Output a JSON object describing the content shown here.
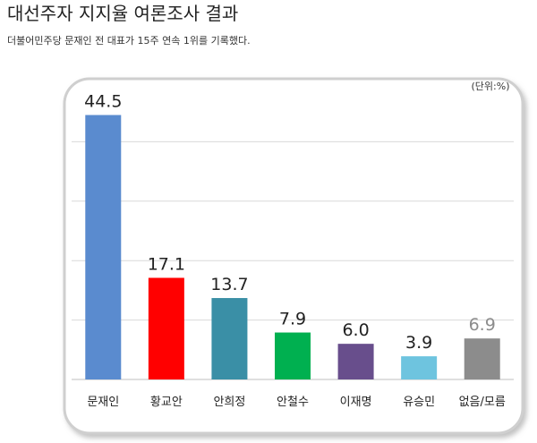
{
  "chart_data": {
    "type": "bar",
    "title": "대선주자 지지율 여론조사 결과",
    "subtitle": "더불어민주당 문재인 전 대표가 15주 연속 1위를 기록했다.",
    "unit_label": "(단위:%)",
    "categories": [
      "문재인",
      "황교안",
      "안희정",
      "안철수",
      "이재명",
      "유승민",
      "없음/모름"
    ],
    "values": [
      44.5,
      17.1,
      13.7,
      7.9,
      6.0,
      3.9,
      6.9
    ],
    "value_labels": [
      "44.5",
      "17.1",
      "13.7",
      "7.9",
      "6.0",
      "3.9",
      "6.9"
    ],
    "colors": [
      "#5a8bcf",
      "#ff0000",
      "#3a8fa6",
      "#00b050",
      "#684e8c",
      "#6ec4df",
      "#8c8c8c"
    ],
    "value_label_colors": [
      "#222222",
      "#222222",
      "#222222",
      "#222222",
      "#222222",
      "#222222",
      "#8c8c8c"
    ],
    "ylim": [
      0,
      50
    ],
    "yticks": [
      10,
      20,
      30,
      40
    ],
    "grid": true
  }
}
